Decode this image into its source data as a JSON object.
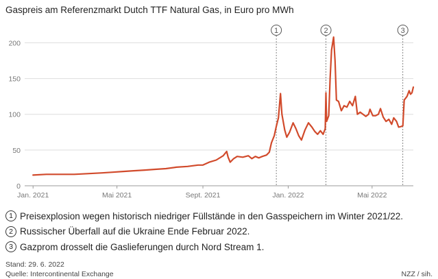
{
  "title": "Gaspreis am Referenzmarkt Dutch TTF Natural Gas, in Euro pro MWh",
  "chart_data": {
    "type": "line",
    "title": "Gaspreis am Referenzmarkt Dutch TTF Natural Gas, in Euro pro MWh",
    "xlabel": "",
    "ylabel": "",
    "x_range": [
      "2020-12-20",
      "2022-06-29"
    ],
    "ylim": [
      0,
      210
    ],
    "y_ticks": [
      0,
      50,
      100,
      150,
      200
    ],
    "x_ticks": [
      {
        "date": "2021-01-01",
        "label": "Jan. 2021"
      },
      {
        "date": "2021-05-01",
        "label": "Mai 2021"
      },
      {
        "date": "2021-09-01",
        "label": "Sept. 2021"
      },
      {
        "date": "2022-01-01",
        "label": "Jan. 2022"
      },
      {
        "date": "2022-05-01",
        "label": "Mai 2022"
      }
    ],
    "grid": true,
    "line_color": "#d14a2b",
    "series": [
      {
        "points": [
          [
            "2021-01-01",
            15
          ],
          [
            "2021-01-20",
            16
          ],
          [
            "2021-02-10",
            16
          ],
          [
            "2021-03-01",
            16
          ],
          [
            "2021-03-20",
            17
          ],
          [
            "2021-04-10",
            18
          ],
          [
            "2021-04-25",
            19
          ],
          [
            "2021-05-10",
            20
          ],
          [
            "2021-05-25",
            21
          ],
          [
            "2021-06-10",
            22
          ],
          [
            "2021-06-25",
            23
          ],
          [
            "2021-07-10",
            24
          ],
          [
            "2021-07-25",
            26
          ],
          [
            "2021-08-10",
            27
          ],
          [
            "2021-08-25",
            29
          ],
          [
            "2021-09-01",
            29
          ],
          [
            "2021-09-10",
            33
          ],
          [
            "2021-09-20",
            36
          ],
          [
            "2021-09-30",
            42
          ],
          [
            "2021-10-05",
            48
          ],
          [
            "2021-10-07",
            40
          ],
          [
            "2021-10-10",
            33
          ],
          [
            "2021-10-15",
            38
          ],
          [
            "2021-10-20",
            41
          ],
          [
            "2021-10-28",
            40
          ],
          [
            "2021-11-05",
            42
          ],
          [
            "2021-11-10",
            38
          ],
          [
            "2021-11-15",
            41
          ],
          [
            "2021-11-20",
            39
          ],
          [
            "2021-11-25",
            41
          ],
          [
            "2021-12-01",
            43
          ],
          [
            "2021-12-05",
            47
          ],
          [
            "2021-12-08",
            60
          ],
          [
            "2021-12-12",
            70
          ],
          [
            "2021-12-15",
            83
          ],
          [
            "2021-12-18",
            95
          ],
          [
            "2021-12-21",
            129
          ],
          [
            "2021-12-23",
            100
          ],
          [
            "2021-12-27",
            78
          ],
          [
            "2021-12-30",
            68
          ],
          [
            "2022-01-03",
            75
          ],
          [
            "2022-01-08",
            88
          ],
          [
            "2022-01-12",
            80
          ],
          [
            "2022-01-16",
            70
          ],
          [
            "2022-01-20",
            64
          ],
          [
            "2022-01-25",
            78
          ],
          [
            "2022-01-30",
            88
          ],
          [
            "2022-02-04",
            82
          ],
          [
            "2022-02-08",
            76
          ],
          [
            "2022-02-12",
            72
          ],
          [
            "2022-02-16",
            77
          ],
          [
            "2022-02-20",
            72
          ],
          [
            "2022-02-23",
            80
          ],
          [
            "2022-02-24",
            130
          ],
          [
            "2022-02-25",
            90
          ],
          [
            "2022-02-28",
            98
          ],
          [
            "2022-03-02",
            150
          ],
          [
            "2022-03-04",
            190
          ],
          [
            "2022-03-07",
            208
          ],
          [
            "2022-03-09",
            175
          ],
          [
            "2022-03-11",
            120
          ],
          [
            "2022-03-14",
            118
          ],
          [
            "2022-03-18",
            105
          ],
          [
            "2022-03-22",
            112
          ],
          [
            "2022-03-26",
            110
          ],
          [
            "2022-03-30",
            118
          ],
          [
            "2022-04-03",
            112
          ],
          [
            "2022-04-07",
            125
          ],
          [
            "2022-04-10",
            100
          ],
          [
            "2022-04-14",
            103
          ],
          [
            "2022-04-18",
            100
          ],
          [
            "2022-04-22",
            97
          ],
          [
            "2022-04-26",
            100
          ],
          [
            "2022-04-28",
            107
          ],
          [
            "2022-05-02",
            98
          ],
          [
            "2022-05-06",
            98
          ],
          [
            "2022-05-10",
            100
          ],
          [
            "2022-05-13",
            108
          ],
          [
            "2022-05-17",
            96
          ],
          [
            "2022-05-21",
            90
          ],
          [
            "2022-05-25",
            93
          ],
          [
            "2022-05-29",
            86
          ],
          [
            "2022-06-01",
            95
          ],
          [
            "2022-06-05",
            90
          ],
          [
            "2022-06-08",
            82
          ],
          [
            "2022-06-12",
            83
          ],
          [
            "2022-06-14",
            84
          ],
          [
            "2022-06-16",
            120
          ],
          [
            "2022-06-20",
            125
          ],
          [
            "2022-06-23",
            133
          ],
          [
            "2022-06-25",
            128
          ],
          [
            "2022-06-27",
            130
          ],
          [
            "2022-06-29",
            138
          ]
        ]
      }
    ],
    "markers": [
      {
        "label": "1",
        "date": "2021-12-15"
      },
      {
        "label": "2",
        "date": "2022-02-24"
      },
      {
        "label": "3",
        "date": "2022-06-14"
      }
    ]
  },
  "annotations": [
    {
      "num": "1",
      "text": "Preisexplosion wegen historisch niedriger Füllstände in den Gasspeichern im Winter 2021/22."
    },
    {
      "num": "2",
      "text": "Russischer Überfall auf die Ukraine Ende Februar 2022."
    },
    {
      "num": "3",
      "text": "Gazprom drosselt die Gaslieferungen durch Nord Stream 1."
    }
  ],
  "stand": "Stand: 29. 6. 2022",
  "source": "Quelle: Intercontinental Exchange",
  "credit": "NZZ / sih."
}
